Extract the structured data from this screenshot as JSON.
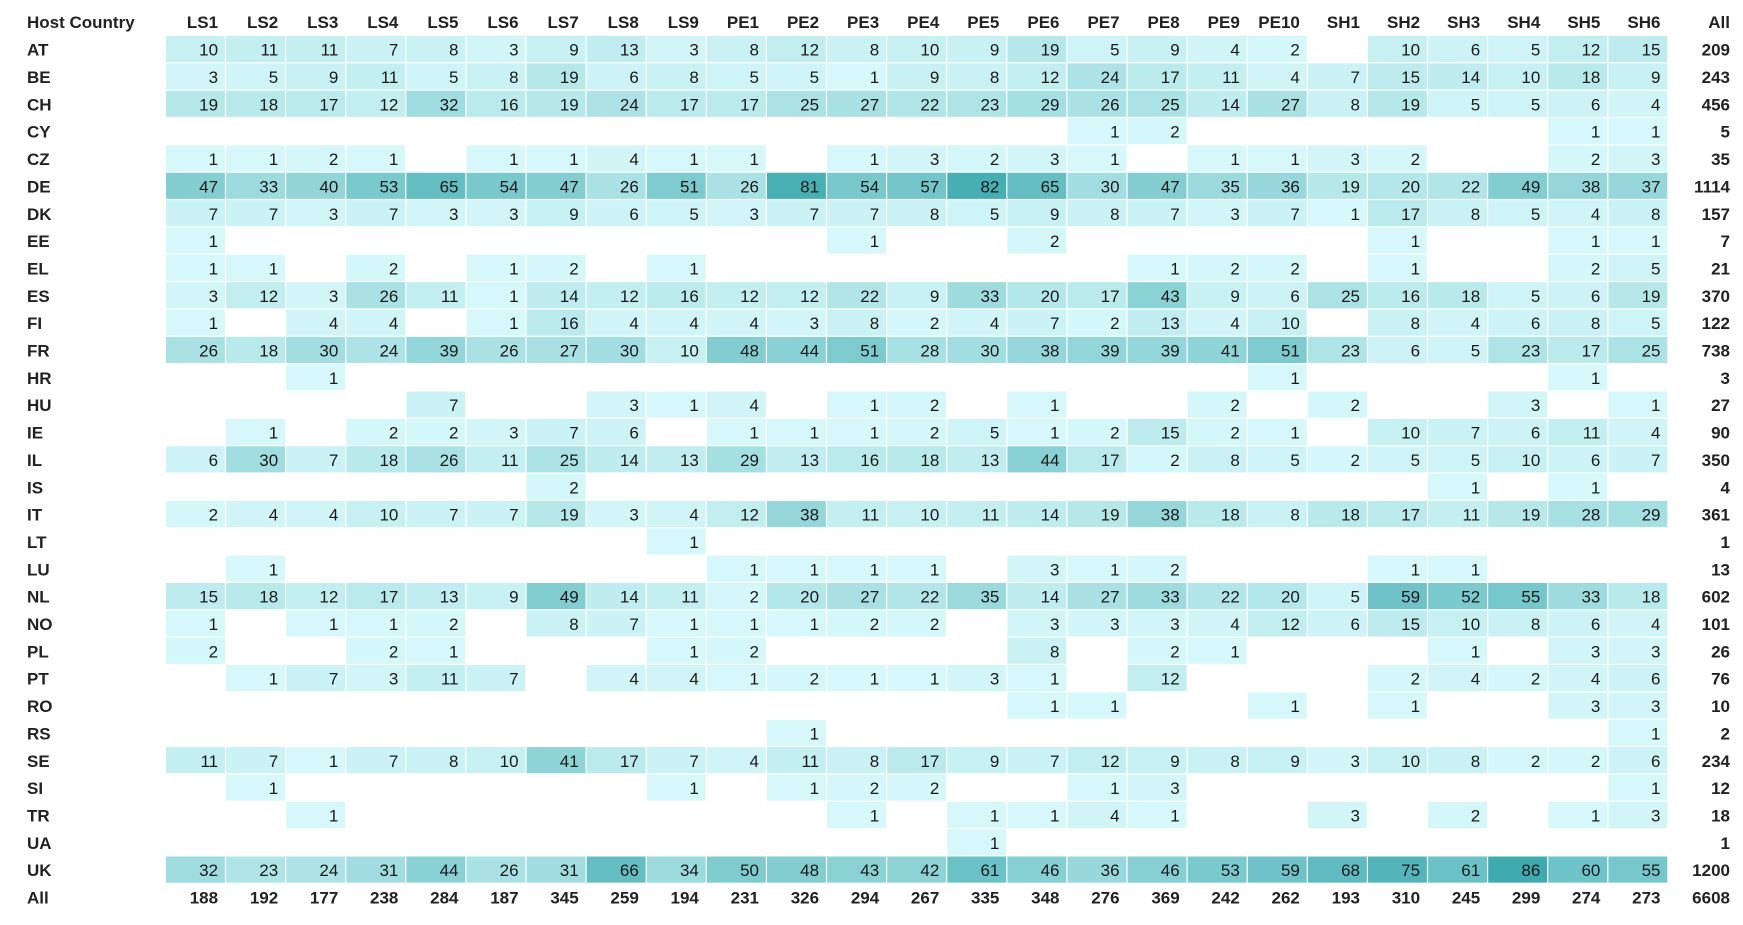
{
  "chart_data": {
    "type": "heatmap",
    "corner_label": "Host Country",
    "total_label": "All",
    "columns": [
      "LS1",
      "LS2",
      "LS3",
      "LS4",
      "LS5",
      "LS6",
      "LS7",
      "LS8",
      "LS9",
      "PE1",
      "PE2",
      "PE3",
      "PE4",
      "PE5",
      "PE6",
      "PE7",
      "PE8",
      "PE9",
      "PE10",
      "SH1",
      "SH2",
      "SH3",
      "SH4",
      "SH5",
      "SH6"
    ],
    "rows": [
      {
        "country": "AT",
        "values": [
          10,
          11,
          11,
          7,
          8,
          3,
          9,
          13,
          3,
          8,
          12,
          8,
          10,
          9,
          19,
          5,
          9,
          4,
          2,
          null,
          10,
          6,
          5,
          12,
          15
        ],
        "total": 209
      },
      {
        "country": "BE",
        "values": [
          3,
          5,
          9,
          11,
          5,
          8,
          19,
          6,
          8,
          5,
          5,
          1,
          9,
          8,
          12,
          24,
          17,
          11,
          4,
          7,
          15,
          14,
          10,
          18,
          9
        ],
        "total": 243
      },
      {
        "country": "CH",
        "values": [
          19,
          18,
          17,
          12,
          32,
          16,
          19,
          24,
          17,
          17,
          25,
          27,
          22,
          23,
          29,
          26,
          25,
          14,
          27,
          8,
          19,
          5,
          5,
          6,
          4
        ],
        "total": 456
      },
      {
        "country": "CY",
        "values": [
          null,
          null,
          null,
          null,
          null,
          null,
          null,
          null,
          null,
          null,
          null,
          null,
          null,
          null,
          null,
          1,
          2,
          null,
          null,
          null,
          null,
          null,
          null,
          1,
          1
        ],
        "total": 5
      },
      {
        "country": "CZ",
        "values": [
          1,
          1,
          2,
          1,
          null,
          1,
          1,
          4,
          1,
          1,
          null,
          1,
          3,
          2,
          3,
          1,
          null,
          1,
          1,
          3,
          2,
          null,
          null,
          2,
          3
        ],
        "total": 35
      },
      {
        "country": "DE",
        "values": [
          47,
          33,
          40,
          53,
          65,
          54,
          47,
          26,
          51,
          26,
          81,
          54,
          57,
          82,
          65,
          30,
          47,
          35,
          36,
          19,
          20,
          22,
          49,
          38,
          37
        ],
        "total": 1114
      },
      {
        "country": "DK",
        "values": [
          7,
          7,
          3,
          7,
          3,
          3,
          9,
          6,
          5,
          3,
          7,
          7,
          8,
          5,
          9,
          8,
          7,
          3,
          7,
          1,
          17,
          8,
          5,
          4,
          8
        ],
        "total": 157
      },
      {
        "country": "EE",
        "values": [
          1,
          null,
          null,
          null,
          null,
          null,
          null,
          null,
          null,
          null,
          null,
          1,
          null,
          null,
          2,
          null,
          null,
          null,
          null,
          null,
          1,
          null,
          null,
          1,
          1
        ],
        "total": 7
      },
      {
        "country": "EL",
        "values": [
          1,
          1,
          null,
          2,
          null,
          1,
          2,
          null,
          1,
          null,
          null,
          null,
          null,
          null,
          null,
          null,
          1,
          2,
          2,
          null,
          1,
          null,
          null,
          2,
          5
        ],
        "total": 21
      },
      {
        "country": "ES",
        "values": [
          3,
          12,
          3,
          26,
          11,
          1,
          14,
          12,
          16,
          12,
          12,
          22,
          9,
          33,
          20,
          17,
          43,
          9,
          6,
          25,
          16,
          18,
          5,
          6,
          19
        ],
        "total": 370
      },
      {
        "country": "FI",
        "values": [
          1,
          null,
          4,
          4,
          null,
          1,
          16,
          4,
          4,
          4,
          3,
          8,
          2,
          4,
          7,
          2,
          13,
          4,
          10,
          null,
          8,
          4,
          6,
          8,
          5
        ],
        "total": 122
      },
      {
        "country": "FR",
        "values": [
          26,
          18,
          30,
          24,
          39,
          26,
          27,
          30,
          10,
          48,
          44,
          51,
          28,
          30,
          38,
          39,
          39,
          41,
          51,
          23,
          6,
          5,
          23,
          17,
          25
        ],
        "total": 738
      },
      {
        "country": "HR",
        "values": [
          null,
          null,
          1,
          null,
          null,
          null,
          null,
          null,
          null,
          null,
          null,
          null,
          null,
          null,
          null,
          null,
          null,
          null,
          1,
          null,
          null,
          null,
          null,
          1,
          null
        ],
        "total": 3
      },
      {
        "country": "HU",
        "values": [
          null,
          null,
          null,
          null,
          7,
          null,
          null,
          3,
          1,
          4,
          null,
          1,
          2,
          null,
          1,
          null,
          null,
          2,
          null,
          2,
          null,
          null,
          3,
          null,
          1
        ],
        "total": 27
      },
      {
        "country": "IE",
        "values": [
          null,
          1,
          null,
          2,
          2,
          3,
          7,
          6,
          null,
          1,
          1,
          1,
          2,
          5,
          1,
          2,
          15,
          2,
          1,
          null,
          10,
          7,
          6,
          11,
          4
        ],
        "total": 90
      },
      {
        "country": "IL",
        "values": [
          6,
          30,
          7,
          18,
          26,
          11,
          25,
          14,
          13,
          29,
          13,
          16,
          18,
          13,
          44,
          17,
          2,
          8,
          5,
          2,
          5,
          5,
          10,
          6,
          7
        ],
        "total": 350
      },
      {
        "country": "IS",
        "values": [
          null,
          null,
          null,
          null,
          null,
          null,
          2,
          null,
          null,
          null,
          null,
          null,
          null,
          null,
          null,
          null,
          null,
          null,
          null,
          null,
          null,
          1,
          null,
          1,
          null
        ],
        "total": 4
      },
      {
        "country": "IT",
        "values": [
          2,
          4,
          4,
          10,
          7,
          7,
          19,
          3,
          4,
          12,
          38,
          11,
          10,
          11,
          14,
          19,
          38,
          18,
          8,
          18,
          17,
          11,
          19,
          28,
          29
        ],
        "total": 361
      },
      {
        "country": "LT",
        "values": [
          null,
          null,
          null,
          null,
          null,
          null,
          null,
          null,
          1,
          null,
          null,
          null,
          null,
          null,
          null,
          null,
          null,
          null,
          null,
          null,
          null,
          null,
          null,
          null,
          null
        ],
        "total": 1
      },
      {
        "country": "LU",
        "values": [
          null,
          1,
          null,
          null,
          null,
          null,
          null,
          null,
          null,
          1,
          1,
          1,
          1,
          null,
          3,
          1,
          2,
          null,
          null,
          null,
          1,
          1,
          null,
          null,
          null
        ],
        "total": 13
      },
      {
        "country": "NL",
        "values": [
          15,
          18,
          12,
          17,
          13,
          9,
          49,
          14,
          11,
          2,
          20,
          27,
          22,
          35,
          14,
          27,
          33,
          22,
          20,
          5,
          59,
          52,
          55,
          33,
          18
        ],
        "total": 602
      },
      {
        "country": "NO",
        "values": [
          1,
          null,
          1,
          1,
          2,
          null,
          8,
          7,
          1,
          1,
          1,
          2,
          2,
          null,
          3,
          3,
          3,
          4,
          12,
          6,
          15,
          10,
          8,
          6,
          4
        ],
        "total": 101
      },
      {
        "country": "PL",
        "values": [
          2,
          null,
          null,
          2,
          1,
          null,
          null,
          null,
          1,
          2,
          null,
          null,
          null,
          null,
          8,
          null,
          2,
          1,
          null,
          null,
          null,
          1,
          null,
          3,
          3
        ],
        "total": 26
      },
      {
        "country": "PT",
        "values": [
          null,
          1,
          7,
          3,
          11,
          7,
          null,
          4,
          4,
          1,
          2,
          1,
          1,
          3,
          1,
          null,
          12,
          null,
          null,
          null,
          2,
          4,
          2,
          4,
          6
        ],
        "total": 76
      },
      {
        "country": "RO",
        "values": [
          null,
          null,
          null,
          null,
          null,
          null,
          null,
          null,
          null,
          null,
          null,
          null,
          null,
          null,
          1,
          1,
          null,
          null,
          1,
          null,
          1,
          null,
          null,
          3,
          3
        ],
        "total": 10
      },
      {
        "country": "RS",
        "values": [
          null,
          null,
          null,
          null,
          null,
          null,
          null,
          null,
          null,
          null,
          1,
          null,
          null,
          null,
          null,
          null,
          null,
          null,
          null,
          null,
          null,
          null,
          null,
          null,
          1
        ],
        "total": 2
      },
      {
        "country": "SE",
        "values": [
          11,
          7,
          1,
          7,
          8,
          10,
          41,
          17,
          7,
          4,
          11,
          8,
          17,
          9,
          7,
          12,
          9,
          8,
          9,
          3,
          10,
          8,
          2,
          2,
          6
        ],
        "total": 234
      },
      {
        "country": "SI",
        "values": [
          null,
          1,
          null,
          null,
          null,
          null,
          null,
          null,
          1,
          null,
          1,
          2,
          2,
          null,
          null,
          1,
          3,
          null,
          null,
          null,
          null,
          null,
          null,
          null,
          1
        ],
        "total": 12
      },
      {
        "country": "TR",
        "values": [
          null,
          null,
          1,
          null,
          null,
          null,
          null,
          null,
          null,
          null,
          null,
          1,
          null,
          1,
          1,
          4,
          1,
          null,
          null,
          3,
          null,
          2,
          null,
          1,
          3
        ],
        "total": 18
      },
      {
        "country": "UA",
        "values": [
          null,
          null,
          null,
          null,
          null,
          null,
          null,
          null,
          null,
          null,
          null,
          null,
          null,
          1,
          null,
          null,
          null,
          null,
          null,
          null,
          null,
          null,
          null,
          null,
          null
        ],
        "total": 1
      },
      {
        "country": "UK",
        "values": [
          32,
          23,
          24,
          31,
          44,
          26,
          31,
          66,
          34,
          50,
          48,
          43,
          42,
          61,
          46,
          36,
          46,
          53,
          59,
          68,
          75,
          61,
          86,
          60,
          55
        ],
        "total": 1200
      }
    ],
    "column_totals": [
      188,
      192,
      177,
      238,
      284,
      187,
      345,
      259,
      194,
      231,
      326,
      294,
      267,
      335,
      348,
      276,
      369,
      242,
      262,
      193,
      310,
      245,
      299,
      274,
      273
    ],
    "grand_total": 6608,
    "color_scale": {
      "low": "#d6f8fa",
      "high": "#3fabb0"
    },
    "text_color": "#1a1a1a"
  }
}
